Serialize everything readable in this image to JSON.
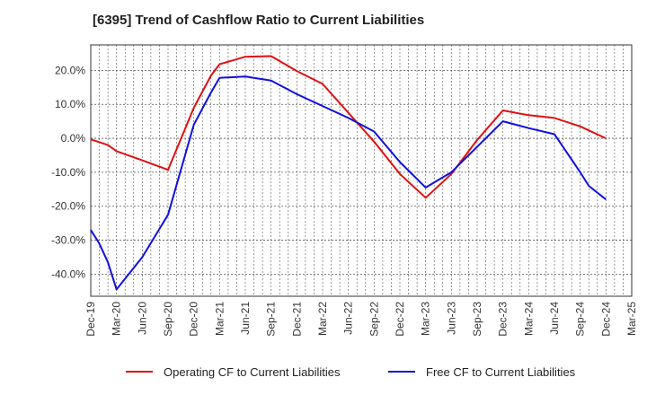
{
  "chart_data": {
    "type": "line",
    "title": "[6395]  Trend of Cashflow Ratio to Current Liabilities",
    "xlabel": "",
    "ylabel": "",
    "x": [
      "Dec-19",
      "Jan-20",
      "Feb-20",
      "Mar-20",
      "Jun-20",
      "Sep-20",
      "Dec-20",
      "Jan-21",
      "Feb-21",
      "Mar-21",
      "Jun-21",
      "Sep-21",
      "Dec-21",
      "Mar-22",
      "Jun-22",
      "Sep-22",
      "Dec-22",
      "Mar-23",
      "Jun-23",
      "Sep-23",
      "Dec-23",
      "Mar-24",
      "Jun-24",
      "Sep-24",
      "Oct-24",
      "Dec-24"
    ],
    "x_ticks": [
      "Dec-19",
      "Mar-20",
      "Jun-20",
      "Sep-20",
      "Dec-20",
      "Mar-21",
      "Jun-21",
      "Sep-21",
      "Dec-21",
      "Mar-22",
      "Jun-22",
      "Sep-22",
      "Dec-22",
      "Mar-23",
      "Jun-23",
      "Sep-23",
      "Dec-23",
      "Mar-24",
      "Jun-24",
      "Sep-24",
      "Dec-24",
      "Mar-25"
    ],
    "y_ticks": [
      "20.0%",
      "10.0%",
      "0.0%",
      "-10.0%",
      "-20.0%",
      "-30.0%",
      "-40.0%"
    ],
    "y_tick_values": [
      20,
      10,
      0,
      -10,
      -20,
      -30,
      -40
    ],
    "ylim": [
      -46.5,
      27.5
    ],
    "grid": true,
    "legend_position": "bottom",
    "series": [
      {
        "name": "Operating CF to Current Liabilities",
        "color": "#e01010",
        "points": [
          [
            "Dec-19",
            -0.3
          ],
          [
            "Feb-20",
            -2.0
          ],
          [
            "Mar-20",
            -3.8
          ],
          [
            "Jun-20",
            -6.5
          ],
          [
            "Sep-20",
            -9.3
          ],
          [
            "Dec-20",
            9.0
          ],
          [
            "Feb-21",
            18.5
          ],
          [
            "Mar-21",
            21.8
          ],
          [
            "Jun-21",
            24.0
          ],
          [
            "Sep-21",
            24.2
          ],
          [
            "Dec-21",
            19.8
          ],
          [
            "Mar-22",
            16.0
          ],
          [
            "Jun-22",
            7.5
          ],
          [
            "Sep-22",
            -1.0
          ],
          [
            "Dec-22",
            -10.5
          ],
          [
            "Mar-23",
            -17.5
          ],
          [
            "Jun-23",
            -10.5
          ],
          [
            "Sep-23",
            -0.5
          ],
          [
            "Dec-23",
            8.2
          ],
          [
            "Mar-24",
            6.8
          ],
          [
            "Jun-24",
            6.0
          ],
          [
            "Sep-24",
            3.5
          ],
          [
            "Dec-24",
            0.0
          ]
        ]
      },
      {
        "name": "Free CF to Current Liabilities",
        "color": "#1010e0",
        "points": [
          [
            "Dec-19",
            -27.0
          ],
          [
            "Jan-20",
            -31.0
          ],
          [
            "Feb-20",
            -36.5
          ],
          [
            "Mar-20",
            -44.5
          ],
          [
            "Jun-20",
            -35.0
          ],
          [
            "Sep-20",
            -22.5
          ],
          [
            "Dec-20",
            4.0
          ],
          [
            "Feb-21",
            13.5
          ],
          [
            "Mar-21",
            17.8
          ],
          [
            "Jun-21",
            18.2
          ],
          [
            "Sep-21",
            17.0
          ],
          [
            "Dec-21",
            13.0
          ],
          [
            "Mar-22",
            9.5
          ],
          [
            "Jun-22",
            6.0
          ],
          [
            "Sep-22",
            2.0
          ],
          [
            "Dec-22",
            -7.0
          ],
          [
            "Mar-23",
            -14.5
          ],
          [
            "Jun-23",
            -10.0
          ],
          [
            "Sep-23",
            -2.5
          ],
          [
            "Dec-23",
            5.0
          ],
          [
            "Mar-24",
            3.0
          ],
          [
            "Jun-24",
            1.2
          ],
          [
            "Sep-24",
            -10.0
          ],
          [
            "Oct-24",
            -14.0
          ],
          [
            "Dec-24",
            -18.0
          ]
        ]
      }
    ]
  }
}
